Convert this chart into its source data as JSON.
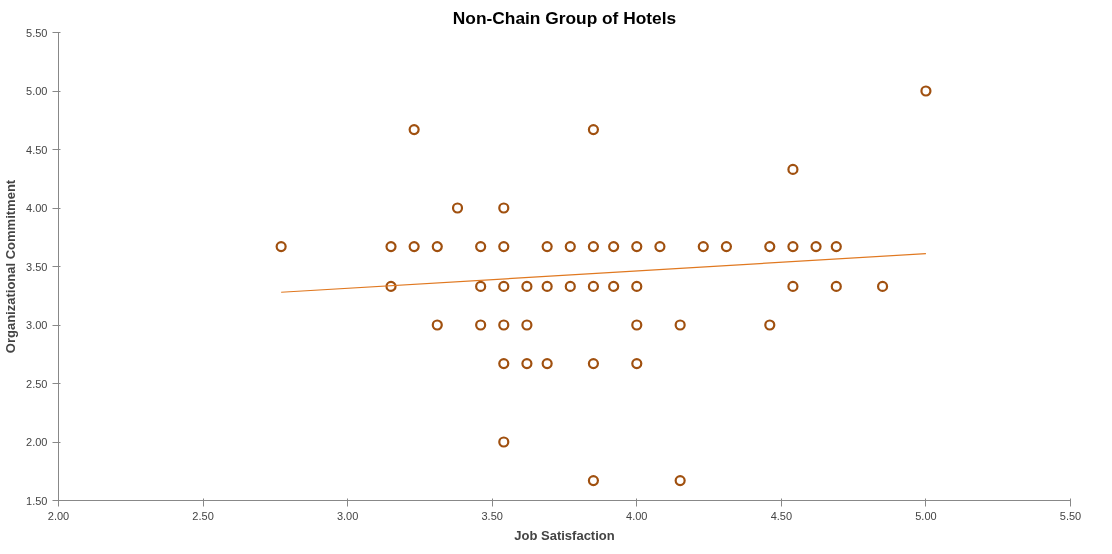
{
  "chart_data": {
    "type": "scatter",
    "title": "Non-Chain Group of Hotels",
    "xlabel": "Job Satisfaction",
    "ylabel": "Organizational Commitment",
    "xlim": [
      2.0,
      5.5
    ],
    "xticks": [
      {
        "value": 2.0,
        "label": "2.00"
      },
      {
        "value": 2.5,
        "label": "2.50"
      },
      {
        "value": 3.0,
        "label": "3.00"
      },
      {
        "value": 3.5,
        "label": "3.50"
      },
      {
        "value": 4.0,
        "label": "4.00"
      },
      {
        "value": 4.5,
        "label": "4.50"
      },
      {
        "value": 5.0,
        "label": "5.00"
      },
      {
        "value": 5.5,
        "label": "5.50"
      }
    ],
    "ylim": [
      1.5,
      5.5
    ],
    "yticks": [
      {
        "value": 1.5,
        "label": "1.50"
      },
      {
        "value": 2.0,
        "label": "2.00"
      },
      {
        "value": 2.5,
        "label": "2.50"
      },
      {
        "value": 3.0,
        "label": "3.00"
      },
      {
        "value": 3.5,
        "label": "3.50"
      },
      {
        "value": 4.0,
        "label": "4.00"
      },
      {
        "value": 4.5,
        "label": "4.50"
      },
      {
        "value": 5.0,
        "label": "5.00"
      },
      {
        "value": 5.5,
        "label": "5.50"
      }
    ],
    "grid": false,
    "series": [
      {
        "color": "#a0500f",
        "marker": "circle",
        "x": [
          2.77,
          3.15,
          3.23,
          3.31,
          3.46,
          3.54,
          3.69,
          3.77,
          3.85,
          3.92,
          4.0,
          4.08,
          4.23,
          4.31,
          4.46,
          4.54,
          4.62,
          4.69,
          3.15,
          3.46,
          3.54,
          3.62,
          3.69,
          3.77,
          3.85,
          3.92,
          4.0,
          4.54,
          4.69,
          4.85,
          3.31,
          3.46,
          3.54,
          3.62,
          4.0,
          4.15,
          4.46,
          3.54,
          3.62,
          3.69,
          3.85,
          4.0,
          3.38,
          3.54,
          3.23,
          3.85,
          4.54,
          5.0,
          3.54,
          3.85,
          4.15
        ],
        "values": [
          3.67,
          3.67,
          3.67,
          3.67,
          3.67,
          3.67,
          3.67,
          3.67,
          3.67,
          3.67,
          3.67,
          3.67,
          3.67,
          3.67,
          3.67,
          3.67,
          3.67,
          3.67,
          3.33,
          3.33,
          3.33,
          3.33,
          3.33,
          3.33,
          3.33,
          3.33,
          3.33,
          3.33,
          3.33,
          3.33,
          3.0,
          3.0,
          3.0,
          3.0,
          3.0,
          3.0,
          3.0,
          2.67,
          2.67,
          2.67,
          2.67,
          2.67,
          4.0,
          4.0,
          4.67,
          4.67,
          4.33,
          5.0,
          2.0,
          1.67,
          1.67
        ]
      },
      {
        "type": "line",
        "color": "#e07820",
        "x": [
          2.77,
          5.0
        ],
        "values": [
          3.28,
          3.61
        ]
      }
    ]
  }
}
